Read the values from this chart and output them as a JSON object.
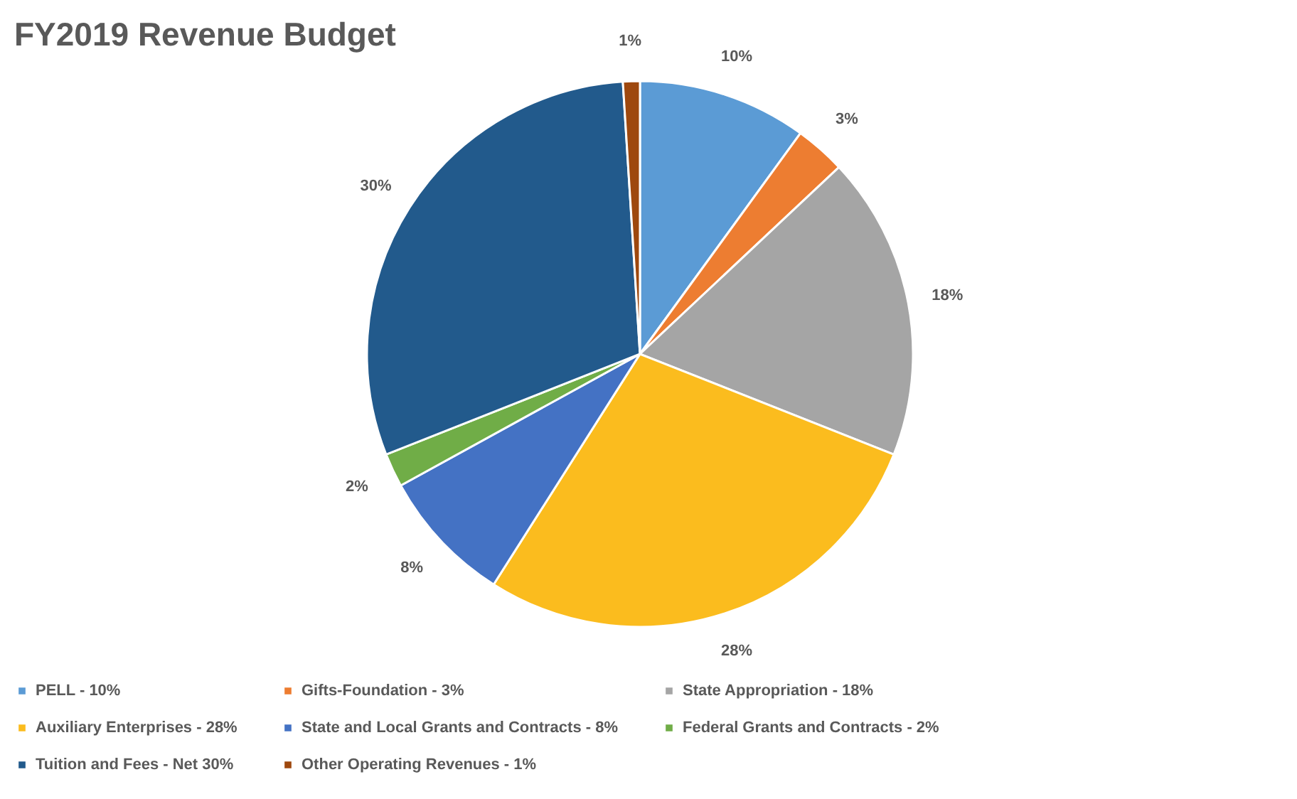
{
  "chart_data": {
    "type": "pie",
    "title": "FY2019 Revenue Budget",
    "categories": [
      "PELL - 10%",
      "Gifts-Foundation - 3%",
      "State Appropriation - 18%",
      "Auxiliary Enterprises - 28%",
      "State and Local Grants and Contracts - 8%",
      "Federal Grants and Contracts - 2%",
      "Tuition and Fees - Net 30%",
      "Other Operating Revenues - 1%"
    ],
    "values": [
      10,
      3,
      18,
      28,
      8,
      2,
      30,
      1
    ],
    "colors": [
      "#5b9bd5",
      "#ed7d31",
      "#a5a5a5",
      "#fbbc1e",
      "#4472c4",
      "#70ad47",
      "#225a8c",
      "#9e480e"
    ],
    "value_labels": [
      "10%",
      "3%",
      "18%",
      "28%",
      "8%",
      "2%",
      "30%",
      "1%"
    ],
    "legend": "bottom"
  }
}
